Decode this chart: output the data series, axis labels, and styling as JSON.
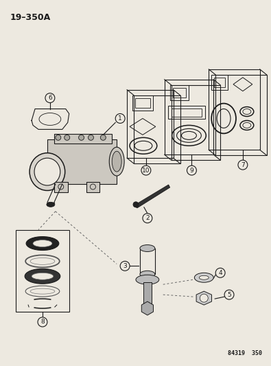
{
  "title": "19–350A",
  "footer": "84319  350",
  "bg_color": "#ede9e0",
  "line_color": "#1a1a1a",
  "gray_color": "#555555",
  "part_numbers": [
    "1",
    "2",
    "3",
    "4",
    "5",
    "6",
    "7",
    "8",
    "9",
    "10"
  ],
  "figsize": [
    3.95,
    5.33
  ],
  "dpi": 100
}
